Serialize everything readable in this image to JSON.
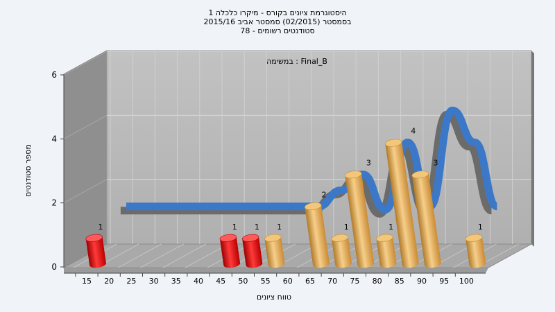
{
  "chart_data": {
    "type": "bar",
    "title_lines": [
      "היסטוגרמת ציונים בקורס - מיקרו כלכלה 1",
      "בסמסטר  (02/2015)  סמסטר אביב 2015/16",
      "סטודנטים רשומים - 78"
    ],
    "annotation": "במשימה : Final_B",
    "xlabel": "טווח ציונים",
    "ylabel": "מספר סטודנטים",
    "x_tick_labels": [
      "15",
      "20",
      "25",
      "30",
      "35",
      "40",
      "45",
      "50",
      "55",
      "60",
      "65",
      "70",
      "75",
      "80",
      "85",
      "90",
      "95",
      "100"
    ],
    "y_tick_labels": [
      "0",
      "2",
      "4",
      "6"
    ],
    "ylim": [
      0,
      6
    ],
    "grid": true,
    "bars": [
      {
        "x": 15,
        "value": 1,
        "label": "1",
        "group": "fail"
      },
      {
        "x": 45,
        "value": 1,
        "label": "1",
        "group": "fail"
      },
      {
        "x": 50,
        "value": 1,
        "label": "1",
        "group": "fail"
      },
      {
        "x": 55,
        "value": 1,
        "label": "1",
        "group": "pass"
      },
      {
        "x": 65,
        "value": 2,
        "label": "2",
        "group": "pass"
      },
      {
        "x": 70,
        "value": 1,
        "label": "1",
        "group": "pass"
      },
      {
        "x": 75,
        "value": 3,
        "label": "3",
        "group": "pass"
      },
      {
        "x": 80,
        "value": 1,
        "label": "1",
        "group": "pass"
      },
      {
        "x": 85,
        "value": 4,
        "label": "4",
        "group": "pass"
      },
      {
        "x": 90,
        "value": 3,
        "label": "3",
        "group": "pass"
      },
      {
        "x": 100,
        "value": 1,
        "label": "1",
        "group": "pass"
      }
    ],
    "trend_line": {
      "x": [
        17,
        55,
        60,
        65,
        70,
        75,
        80,
        85,
        90,
        95,
        100
      ],
      "y": [
        1.5,
        1.5,
        1.5,
        2.0,
        2.5,
        1.4,
        3.5,
        1.5,
        4.5,
        3.5,
        1.5
      ]
    },
    "colors": {
      "fail": "#e01010",
      "pass": "#e6a84c",
      "trend": "#3c78c8",
      "trend_shadow": "#6b6b6b",
      "wall": "#b8b8b8",
      "side_wall": "#8f8f8f",
      "floor": "#aaaaaa"
    }
  }
}
